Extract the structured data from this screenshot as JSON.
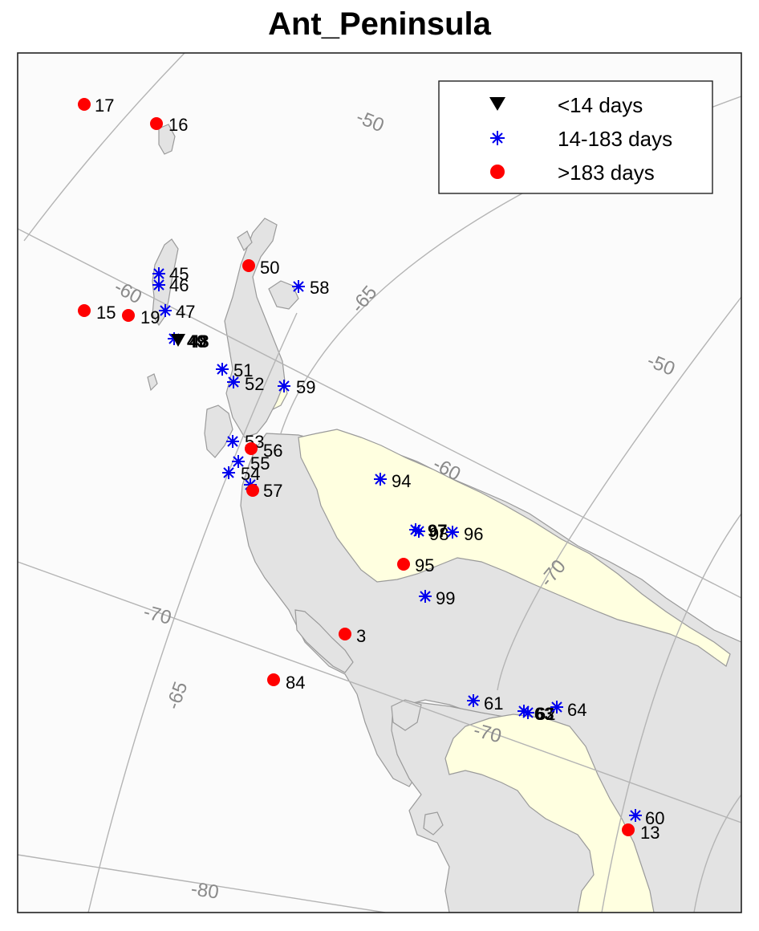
{
  "title": "Ant_Peninsula",
  "colors": {
    "ocean": "#fbfbfb",
    "land": "#e3e3e3",
    "ice_shelf": "#ffffe0",
    "coast": "#9a9a9a",
    "grid": "#b4b4b4",
    "grid_label": "#8a8a8a",
    "red": "#ff0000",
    "blue": "#0000ee",
    "black": "#000000"
  },
  "legend": [
    {
      "label": "<14 days",
      "symbol": "triangle-down-icon",
      "color": "#000000"
    },
    {
      "label": "14-183 days",
      "symbol": "asterisk-icon",
      "color": "#0000ee"
    },
    {
      "label": ">183 days",
      "symbol": "circle-icon",
      "color": "#ff0000"
    }
  ],
  "grid_labels": [
    "-50",
    "-65",
    "-60",
    "-50",
    "-60",
    "-70",
    "-70",
    "-65",
    "-70",
    "-80"
  ],
  "stations": [
    {
      "id": "17",
      "category": ">183 days"
    },
    {
      "id": "16",
      "category": ">183 days"
    },
    {
      "id": "45",
      "category": "14-183 days"
    },
    {
      "id": "46",
      "category": "14-183 days"
    },
    {
      "id": "50",
      "category": ">183 days"
    },
    {
      "id": "58",
      "category": "14-183 days"
    },
    {
      "id": "15",
      "category": ">183 days"
    },
    {
      "id": "19",
      "category": ">183 days"
    },
    {
      "id": "47",
      "category": "14-183 days"
    },
    {
      "id": "49",
      "category": "<14 days"
    },
    {
      "id": "48",
      "category": "<14 days"
    },
    {
      "id": "51",
      "category": "14-183 days"
    },
    {
      "id": "52",
      "category": "14-183 days"
    },
    {
      "id": "59",
      "category": "14-183 days"
    },
    {
      "id": "53",
      "category": "14-183 days"
    },
    {
      "id": "56",
      "category": ">183 days"
    },
    {
      "id": "55",
      "category": "14-183 days"
    },
    {
      "id": "54",
      "category": "14-183 days"
    },
    {
      "id": "57",
      "category": ">183 days"
    },
    {
      "id": "94",
      "category": "14-183 days"
    },
    {
      "id": "97",
      "category": "14-183 days"
    },
    {
      "id": "98",
      "category": "14-183 days"
    },
    {
      "id": "96",
      "category": "14-183 days"
    },
    {
      "id": "95",
      "category": ">183 days"
    },
    {
      "id": "99",
      "category": "14-183 days"
    },
    {
      "id": "3",
      "category": ">183 days"
    },
    {
      "id": "84",
      "category": ">183 days"
    },
    {
      "id": "61",
      "category": "14-183 days"
    },
    {
      "id": "63",
      "category": "14-183 days"
    },
    {
      "id": "62",
      "category": "14-183 days"
    },
    {
      "id": "64",
      "category": "14-183 days"
    },
    {
      "id": "60",
      "category": "14-183 days"
    },
    {
      "id": "13",
      "category": ">183 days"
    }
  ]
}
